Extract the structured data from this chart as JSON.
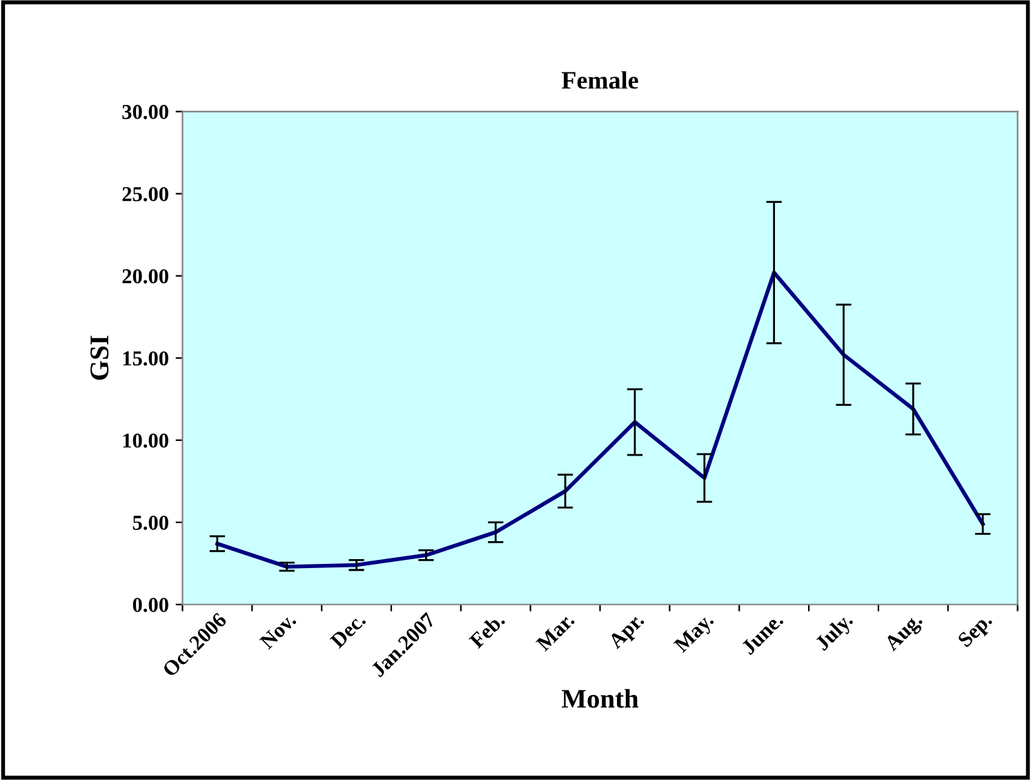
{
  "chart_data": {
    "type": "line",
    "title": "Female",
    "xlabel": "Month",
    "ylabel": "GSI",
    "categories": [
      "Oct.2006",
      "Nov.",
      "Dec.",
      "Jan.2007",
      "Feb.",
      "Mar.",
      "Apr.",
      "May.",
      "June.",
      "July.",
      "Aug.",
      "Sep."
    ],
    "series": [
      {
        "color": "#000080",
        "values": [
          3.7,
          2.3,
          2.4,
          3.0,
          4.4,
          6.9,
          11.1,
          7.7,
          20.2,
          15.2,
          11.9,
          4.9
        ],
        "errors": [
          0.45,
          0.25,
          0.3,
          0.3,
          0.6,
          1.0,
          2.0,
          1.45,
          4.3,
          3.05,
          1.55,
          0.6
        ]
      }
    ],
    "ylim": [
      0,
      30
    ],
    "yticks": [
      {
        "value": 0,
        "label": "0.00"
      },
      {
        "value": 5,
        "label": "5.00"
      },
      {
        "value": 10,
        "label": "10.00"
      },
      {
        "value": 15,
        "label": "15.00"
      },
      {
        "value": 20,
        "label": "20.00"
      },
      {
        "value": 25,
        "label": "25.00"
      },
      {
        "value": 30,
        "label": "30.00"
      }
    ],
    "grid": false,
    "legend": false,
    "marker": "none",
    "line_style": "solid"
  }
}
